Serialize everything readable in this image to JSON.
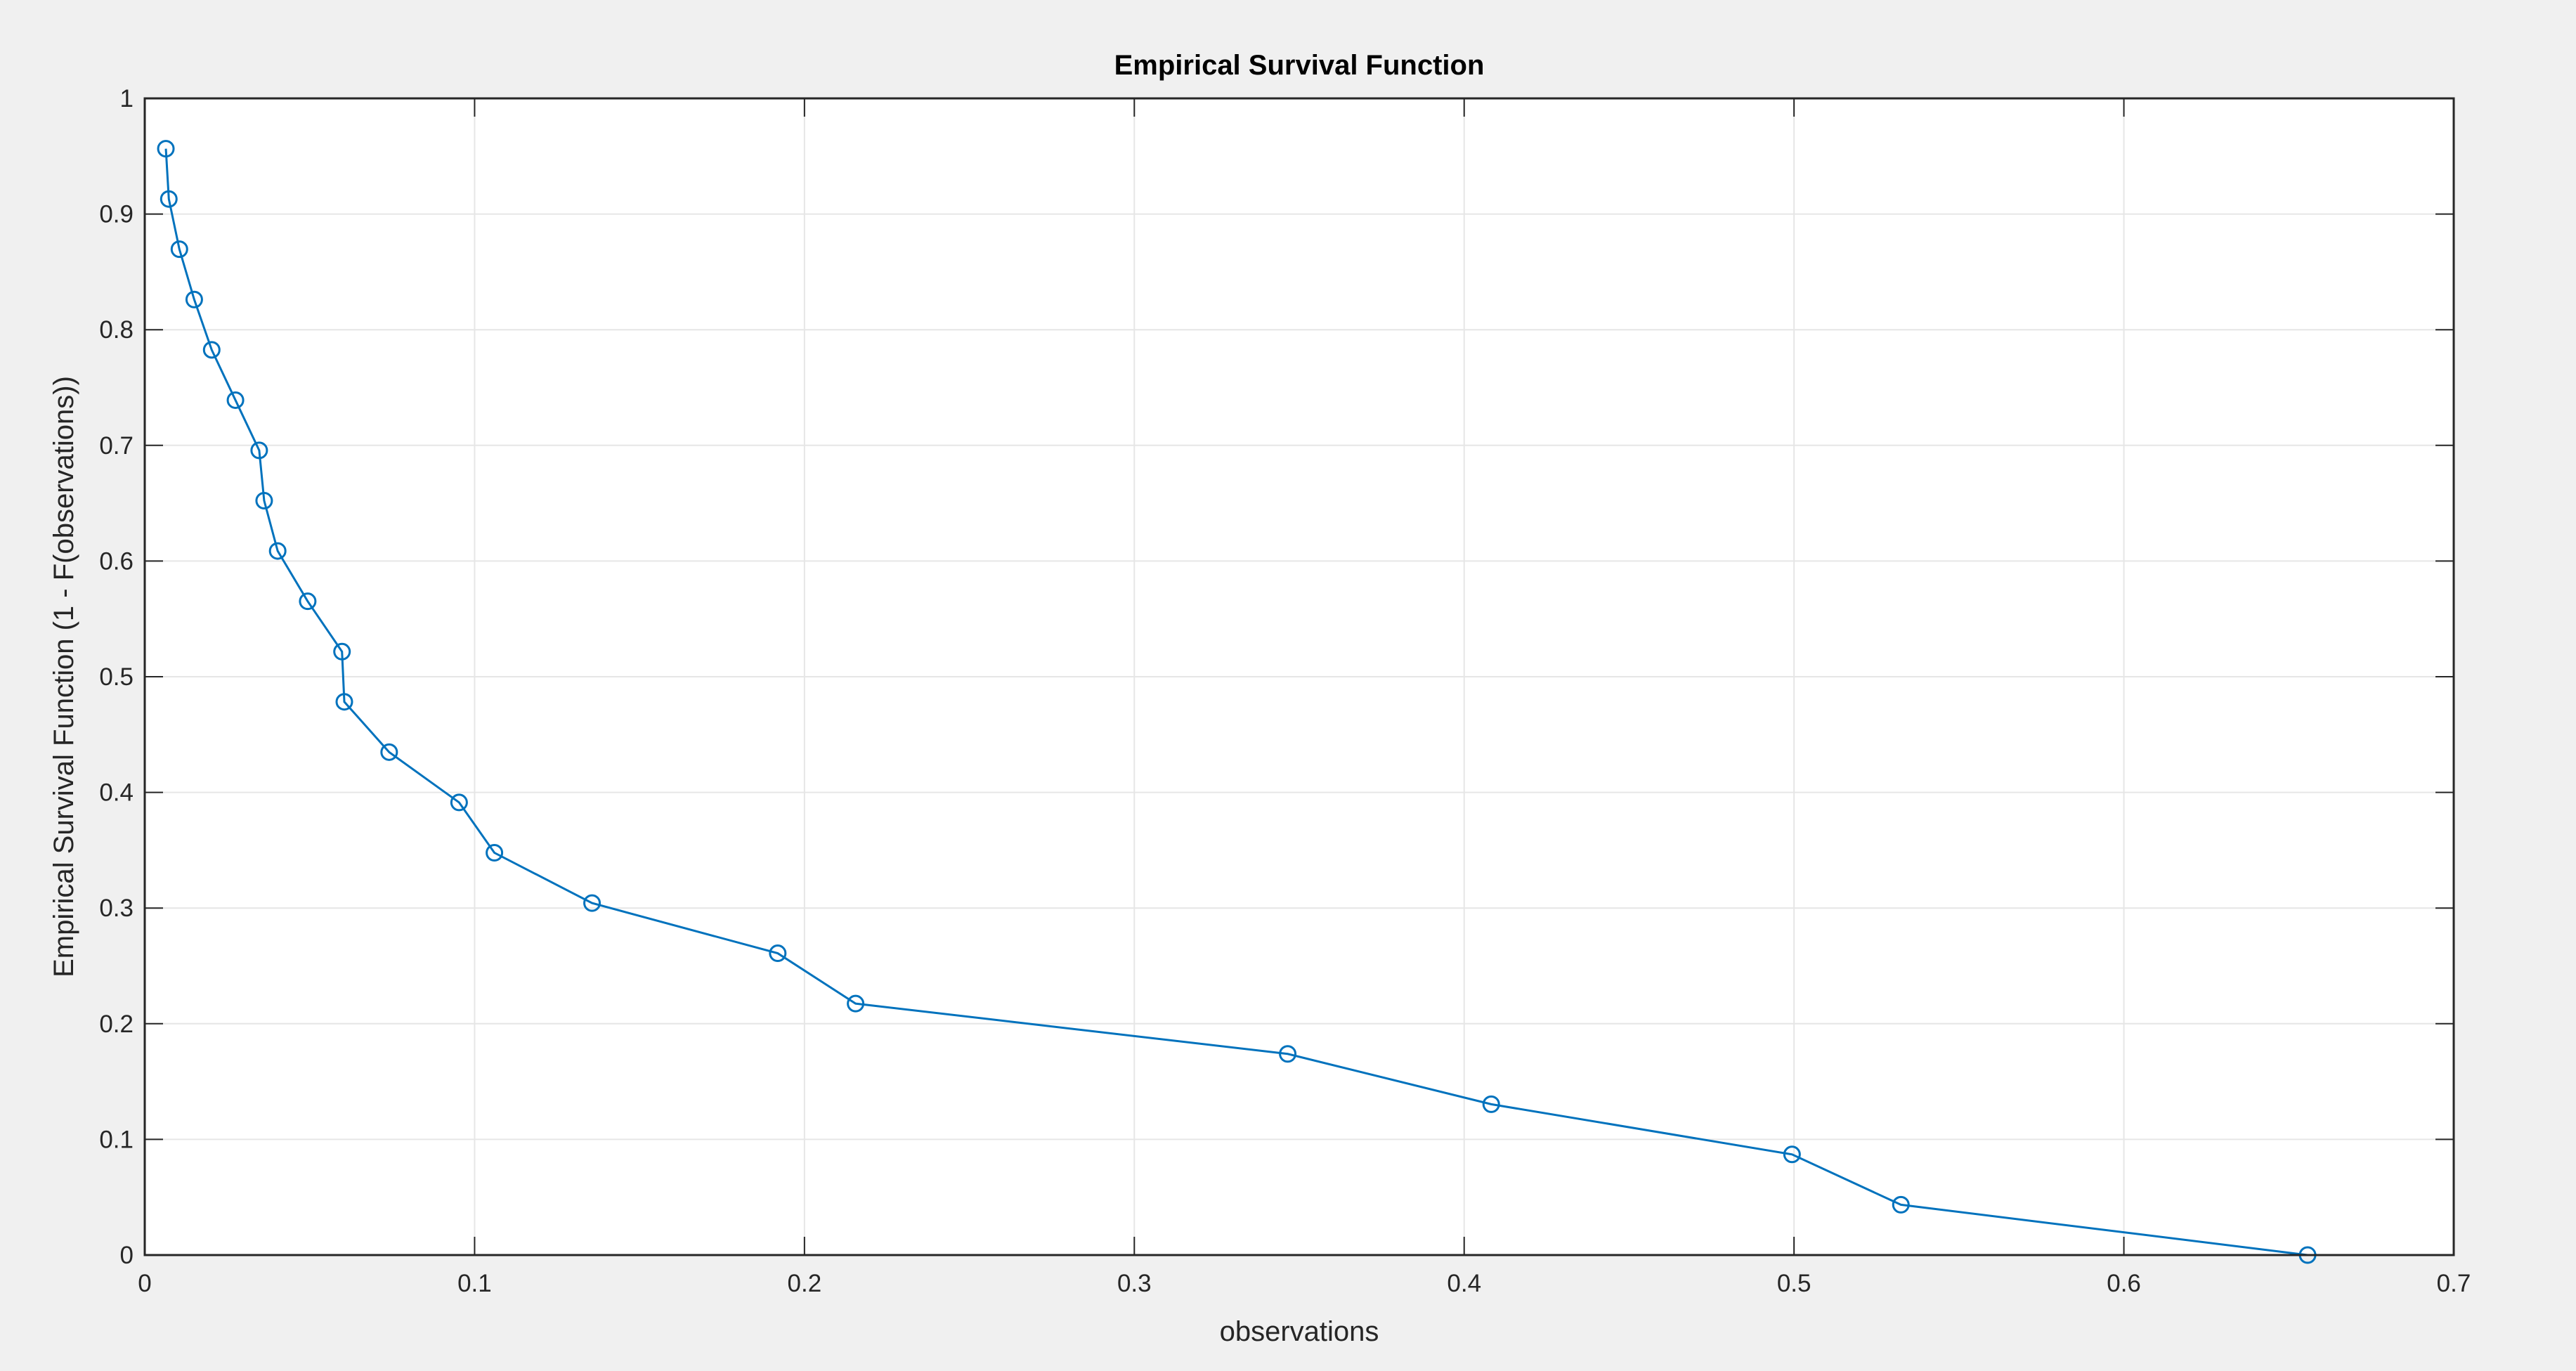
{
  "chart_data": {
    "type": "line",
    "title": "Empirical Survival Function",
    "xlabel": "observations",
    "ylabel": "Empirical Survival Function (1 - F(observations))",
    "xlim": [
      0,
      0.7
    ],
    "ylim": [
      0,
      1
    ],
    "xticks": [
      "0",
      "0.1",
      "0.2",
      "0.3",
      "0.4",
      "0.5",
      "0.6",
      "0.7"
    ],
    "yticks": [
      "0",
      "0.1",
      "0.2",
      "0.3",
      "0.4",
      "0.5",
      "0.6",
      "0.7",
      "0.8",
      "0.9",
      "1"
    ],
    "grid": true,
    "marker": "circle",
    "series": [
      {
        "color": "#0072BD",
        "x": [
          0.0064,
          0.0073,
          0.0105,
          0.015,
          0.0203,
          0.0275,
          0.0347,
          0.0362,
          0.0403,
          0.0494,
          0.0598,
          0.0605,
          0.0741,
          0.0953,
          0.106,
          0.1356,
          0.1919,
          0.2155,
          0.3465,
          0.4082,
          0.4994,
          0.5324,
          0.6557
        ],
        "y": [
          0.9565,
          0.913,
          0.8696,
          0.8261,
          0.7826,
          0.7391,
          0.6957,
          0.6522,
          0.6087,
          0.5652,
          0.5217,
          0.4783,
          0.4348,
          0.3913,
          0.3478,
          0.3043,
          0.2609,
          0.2174,
          0.1739,
          0.1304,
          0.087,
          0.0435,
          0.0
        ]
      }
    ]
  }
}
